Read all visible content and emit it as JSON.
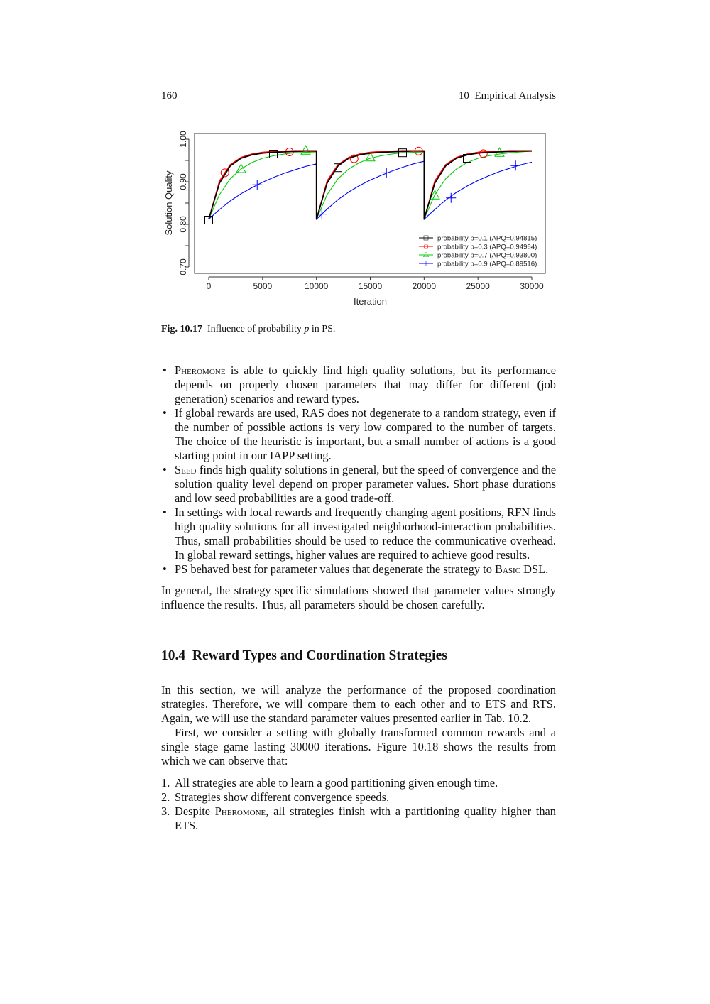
{
  "header": {
    "page_number": "160",
    "running_title": "10  Empirical Analysis"
  },
  "figure": {
    "label": "Fig. 10.17",
    "caption_pre": "Influence of probability ",
    "caption_var": "p",
    "caption_post": " in PS."
  },
  "chart_data": {
    "type": "line",
    "xlabel": "Iteration",
    "ylabel": "Solution Quality",
    "xlim": [
      0,
      30000
    ],
    "ylim": [
      0.7,
      1.0
    ],
    "xticks": [
      "0",
      "5000",
      "10000",
      "15000",
      "20000",
      "25000",
      "30000"
    ],
    "yticks": [
      "0.70",
      "0.80",
      "0.90",
      "1.00"
    ],
    "y_minor_ticks": [
      0.75,
      0.85,
      0.95
    ],
    "grid": false,
    "legend_position": "bottom-right",
    "x": [
      0,
      1000,
      2000,
      3000,
      4000,
      5000,
      6000,
      7000,
      8000,
      9000,
      10000,
      10000,
      11000,
      12000,
      13000,
      14000,
      15000,
      16000,
      17000,
      18000,
      19000,
      20000,
      20000,
      21000,
      22000,
      23000,
      24000,
      25000,
      26000,
      27000,
      28000,
      29000,
      30000
    ],
    "series": [
      {
        "name": "probability p=0.1 (APQ=0.94815)",
        "color": "#000000",
        "marker": "square",
        "values": [
          0.812,
          0.897,
          0.937,
          0.955,
          0.963,
          0.967,
          0.969,
          0.97,
          0.971,
          0.972,
          0.972,
          0.812,
          0.897,
          0.937,
          0.955,
          0.963,
          0.967,
          0.969,
          0.97,
          0.971,
          0.972,
          0.972,
          0.812,
          0.897,
          0.937,
          0.955,
          0.963,
          0.967,
          0.969,
          0.97,
          0.971,
          0.972,
          0.972
        ],
        "markers": [
          [
            0,
            0.81
          ],
          [
            6000,
            0.965
          ],
          [
            12000,
            0.933
          ],
          [
            18000,
            0.968
          ],
          [
            24000,
            0.955
          ]
        ]
      },
      {
        "name": "probability p=0.3 (APQ=0.94964)",
        "color": "#ff0000",
        "marker": "circle",
        "values": [
          0.812,
          0.902,
          0.94,
          0.957,
          0.965,
          0.969,
          0.971,
          0.972,
          0.973,
          0.973,
          0.973,
          0.812,
          0.902,
          0.94,
          0.957,
          0.965,
          0.969,
          0.971,
          0.972,
          0.973,
          0.973,
          0.973,
          0.812,
          0.902,
          0.94,
          0.957,
          0.965,
          0.969,
          0.971,
          0.972,
          0.973,
          0.973,
          0.973
        ],
        "markers": [
          [
            1500,
            0.921
          ],
          [
            7500,
            0.97
          ],
          [
            13500,
            0.954
          ],
          [
            19500,
            0.972
          ],
          [
            25500,
            0.966
          ]
        ]
      },
      {
        "name": "probability p=0.7 (APQ=0.93800)",
        "color": "#00cc00",
        "marker": "triangle",
        "values": [
          0.812,
          0.87,
          0.907,
          0.93,
          0.945,
          0.955,
          0.961,
          0.965,
          0.968,
          0.969,
          0.97,
          0.812,
          0.87,
          0.907,
          0.93,
          0.945,
          0.955,
          0.961,
          0.965,
          0.968,
          0.969,
          0.97,
          0.812,
          0.87,
          0.907,
          0.93,
          0.945,
          0.955,
          0.961,
          0.965,
          0.968,
          0.97,
          0.972
        ],
        "markers": [
          [
            3000,
            0.93
          ],
          [
            9000,
            0.973
          ],
          [
            15000,
            0.957
          ],
          [
            21000,
            0.868
          ],
          [
            27000,
            0.968
          ]
        ]
      },
      {
        "name": "probability p=0.9 (APQ=0.89516)",
        "color": "#0000ff",
        "marker": "plus",
        "values": [
          0.812,
          0.835,
          0.855,
          0.872,
          0.886,
          0.899,
          0.91,
          0.92,
          0.928,
          0.936,
          0.942,
          0.812,
          0.836,
          0.858,
          0.876,
          0.891,
          0.904,
          0.915,
          0.925,
          0.934,
          0.942,
          0.948,
          0.812,
          0.835,
          0.857,
          0.875,
          0.89,
          0.903,
          0.914,
          0.924,
          0.932,
          0.94,
          0.946
        ],
        "markers": [
          [
            4500,
            0.893
          ],
          [
            10500,
            0.824
          ],
          [
            16500,
            0.921
          ],
          [
            22500,
            0.862
          ],
          [
            28500,
            0.938
          ]
        ]
      }
    ]
  },
  "bullets": [
    {
      "sc": "Pheromone",
      "text": " is able to quickly find high quality solutions, but its performance depends on properly chosen parameters that may differ for different (job generation) scenarios and reward types."
    },
    {
      "text": "If global rewards are used, RAS does not degenerate to a random strategy, even if the number of possible actions is very low compared to the number of targets. The choice of the heuristic is important, but a small number of actions is a good starting point in our IAPP setting."
    },
    {
      "sc": "Seed",
      "text": " finds high quality solutions in general, but the speed of convergence and the solution quality level depend on proper parameter values. Short phase durations and low seed probabilities are a good trade-off."
    },
    {
      "text": "In settings with local rewards and frequently changing agent positions, RFN finds high quality solutions for all investigated neighborhood-interaction probabilities. Thus, small probabilities should be used to reduce the communicative overhead. In global reward settings, higher values are required to achieve good results."
    },
    {
      "text": "PS behaved best for parameter values that degenerate the strategy to ",
      "sc": "Basic",
      "post": " DSL."
    }
  ],
  "summary_paragraph": "In general, the strategy specific simulations showed that parameter values strongly influence the results. Thus, all parameters should be chosen carefully.",
  "section": {
    "number": "10.4",
    "title": "Reward Types and Coordination Strategies"
  },
  "paragraph1": "In this section, we will analyze the performance of the proposed coordination strategies. Therefore, we will compare them to each other and to ETS and RTS. Again, we will use the standard parameter values presented earlier in Tab. 10.2.",
  "paragraph2": "First, we consider a setting with globally transformed common rewards and a single stage game lasting 30000 iterations. Figure 10.18 shows the results from which we can observe that:",
  "observations": [
    {
      "n": "1.",
      "text": "All strategies are able to learn a good partitioning given enough time."
    },
    {
      "n": "2.",
      "text": "Strategies show different convergence speeds."
    },
    {
      "n": "3.",
      "pre": "Despite ",
      "sc": "Pheromone",
      "text": ", all strategies finish with a partitioning quality higher than ETS."
    }
  ]
}
